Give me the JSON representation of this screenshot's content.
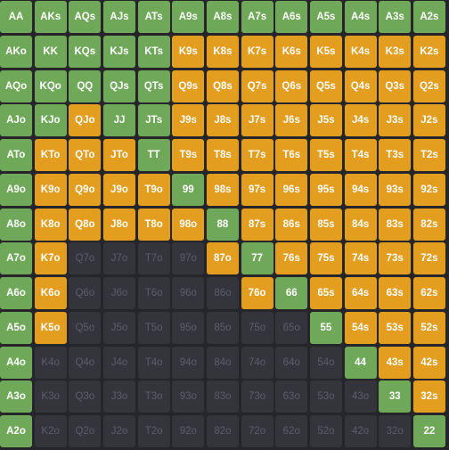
{
  "colors": {
    "green": "#70a85a",
    "orange": "#e39d1f",
    "fold": "#34353b",
    "background": "#25252a"
  },
  "legend_codes": {
    "g": "green",
    "o": "orange",
    "f": "fold"
  },
  "rows": [
    {
      "hands": [
        "AA",
        "AKs",
        "AQs",
        "AJs",
        "ATs",
        "A9s",
        "A8s",
        "A7s",
        "A6s",
        "A5s",
        "A4s",
        "A3s",
        "A2s"
      ],
      "actions": [
        "g",
        "g",
        "g",
        "g",
        "g",
        "g",
        "g",
        "g",
        "g",
        "g",
        "g",
        "g",
        "g"
      ]
    },
    {
      "hands": [
        "AKo",
        "KK",
        "KQs",
        "KJs",
        "KTs",
        "K9s",
        "K8s",
        "K7s",
        "K6s",
        "K5s",
        "K4s",
        "K3s",
        "K2s"
      ],
      "actions": [
        "g",
        "g",
        "g",
        "g",
        "g",
        "o",
        "o",
        "o",
        "o",
        "o",
        "o",
        "o",
        "o"
      ]
    },
    {
      "hands": [
        "AQo",
        "KQo",
        "QQ",
        "QJs",
        "QTs",
        "Q9s",
        "Q8s",
        "Q7s",
        "Q6s",
        "Q5s",
        "Q4s",
        "Q3s",
        "Q2s"
      ],
      "actions": [
        "g",
        "g",
        "g",
        "g",
        "g",
        "o",
        "o",
        "o",
        "o",
        "o",
        "o",
        "o",
        "o"
      ]
    },
    {
      "hands": [
        "AJo",
        "KJo",
        "QJo",
        "JJ",
        "JTs",
        "J9s",
        "J8s",
        "J7s",
        "J6s",
        "J5s",
        "J4s",
        "J3s",
        "J2s"
      ],
      "actions": [
        "g",
        "g",
        "o",
        "g",
        "g",
        "o",
        "o",
        "o",
        "o",
        "o",
        "o",
        "o",
        "o"
      ]
    },
    {
      "hands": [
        "ATo",
        "KTo",
        "QTo",
        "JTo",
        "TT",
        "T9s",
        "T8s",
        "T7s",
        "T6s",
        "T5s",
        "T4s",
        "T3s",
        "T2s"
      ],
      "actions": [
        "g",
        "o",
        "o",
        "o",
        "g",
        "o",
        "o",
        "o",
        "o",
        "o",
        "o",
        "o",
        "o"
      ]
    },
    {
      "hands": [
        "A9o",
        "K9o",
        "Q9o",
        "J9o",
        "T9o",
        "99",
        "98s",
        "97s",
        "96s",
        "95s",
        "94s",
        "93s",
        "92s"
      ],
      "actions": [
        "g",
        "o",
        "o",
        "o",
        "o",
        "g",
        "o",
        "o",
        "o",
        "o",
        "o",
        "o",
        "o"
      ]
    },
    {
      "hands": [
        "A8o",
        "K8o",
        "Q8o",
        "J8o",
        "T8o",
        "98o",
        "88",
        "87s",
        "86s",
        "85s",
        "84s",
        "83s",
        "82s"
      ],
      "actions": [
        "g",
        "o",
        "o",
        "o",
        "o",
        "o",
        "g",
        "o",
        "o",
        "o",
        "o",
        "o",
        "o"
      ]
    },
    {
      "hands": [
        "A7o",
        "K7o",
        "Q7o",
        "J7o",
        "T7o",
        "97o",
        "87o",
        "77",
        "76s",
        "75s",
        "74s",
        "73s",
        "72s"
      ],
      "actions": [
        "g",
        "o",
        "f",
        "f",
        "f",
        "f",
        "o",
        "g",
        "o",
        "o",
        "o",
        "o",
        "o"
      ]
    },
    {
      "hands": [
        "A6o",
        "K6o",
        "Q6o",
        "J6o",
        "T6o",
        "96o",
        "86o",
        "76o",
        "66",
        "65s",
        "64s",
        "63s",
        "62s"
      ],
      "actions": [
        "g",
        "o",
        "f",
        "f",
        "f",
        "f",
        "f",
        "o",
        "g",
        "o",
        "o",
        "o",
        "o"
      ]
    },
    {
      "hands": [
        "A5o",
        "K5o",
        "Q5o",
        "J5o",
        "T5o",
        "95o",
        "85o",
        "75o",
        "65o",
        "55",
        "54s",
        "53s",
        "52s"
      ],
      "actions": [
        "g",
        "o",
        "f",
        "f",
        "f",
        "f",
        "f",
        "f",
        "f",
        "g",
        "o",
        "o",
        "o"
      ]
    },
    {
      "hands": [
        "A4o",
        "K4o",
        "Q4o",
        "J4o",
        "T4o",
        "94o",
        "84o",
        "74o",
        "64o",
        "54o",
        "44",
        "43s",
        "42s"
      ],
      "actions": [
        "g",
        "f",
        "f",
        "f",
        "f",
        "f",
        "f",
        "f",
        "f",
        "f",
        "g",
        "o",
        "o"
      ]
    },
    {
      "hands": [
        "A3o",
        "K3o",
        "Q3o",
        "J3o",
        "T3o",
        "93o",
        "83o",
        "73o",
        "63o",
        "53o",
        "43o",
        "33",
        "32s"
      ],
      "actions": [
        "g",
        "f",
        "f",
        "f",
        "f",
        "f",
        "f",
        "f",
        "f",
        "f",
        "f",
        "g",
        "o"
      ]
    },
    {
      "hands": [
        "A2o",
        "K2o",
        "Q2o",
        "J2o",
        "T2o",
        "92o",
        "82o",
        "72o",
        "62o",
        "52o",
        "42o",
        "32o",
        "22"
      ],
      "actions": [
        "g",
        "f",
        "f",
        "f",
        "f",
        "f",
        "f",
        "f",
        "f",
        "f",
        "f",
        "f",
        "g"
      ]
    }
  ]
}
